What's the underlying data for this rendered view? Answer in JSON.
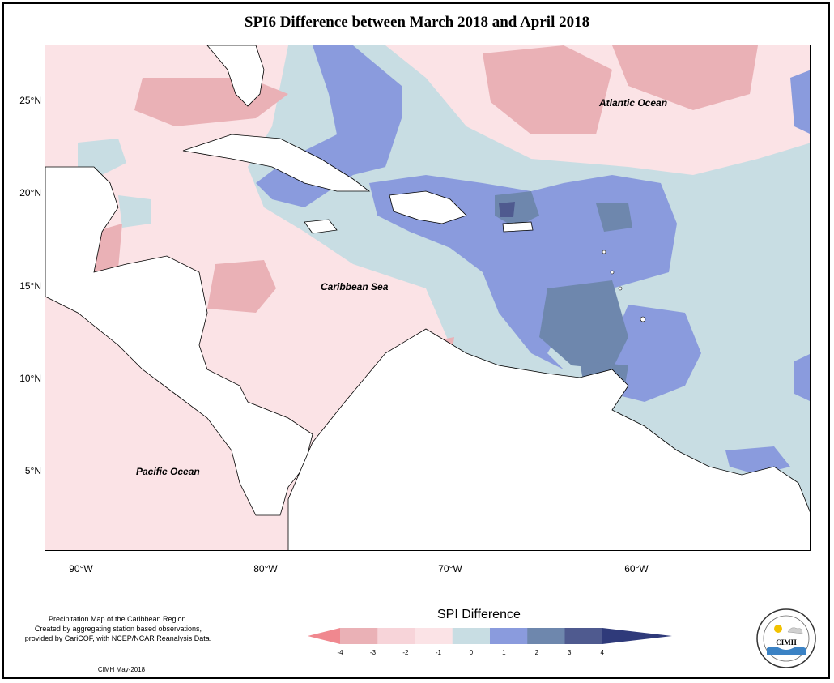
{
  "title": "SPI6 Difference between March 2018 and April 2018",
  "lat_labels": [
    "25°N",
    "20°N",
    "15°N",
    "10°N",
    "5°N"
  ],
  "lon_labels": [
    "90°W",
    "80°W",
    "70°W",
    "60°W"
  ],
  "place_labels": {
    "atlantic": "Atlantic Ocean",
    "caribbean": "Caribbean Sea",
    "pacific": "Pacific Ocean"
  },
  "legend": {
    "title": "SPI Difference",
    "ticks": [
      "-4",
      "-3",
      "-2",
      "-1",
      "0",
      "1",
      "2",
      "3",
      "4"
    ],
    "colors": [
      "#f0888f",
      "#eab1b6",
      "#f7d4d9",
      "#fbe3e6",
      "#c8dde3",
      "#8a9bdd",
      "#6e87ad",
      "#4f5a8f",
      "#2f3a7a"
    ]
  },
  "notes": {
    "line1": "Precipitation Map of the Caribbean Region.",
    "line2": "Created by aggregating station based observations,",
    "line3": "provided by CariCOF, with NCEP/NCAR Reanalysis Data.",
    "credit": "CIMH May-2018"
  },
  "logo": {
    "name": "CIMH"
  }
}
